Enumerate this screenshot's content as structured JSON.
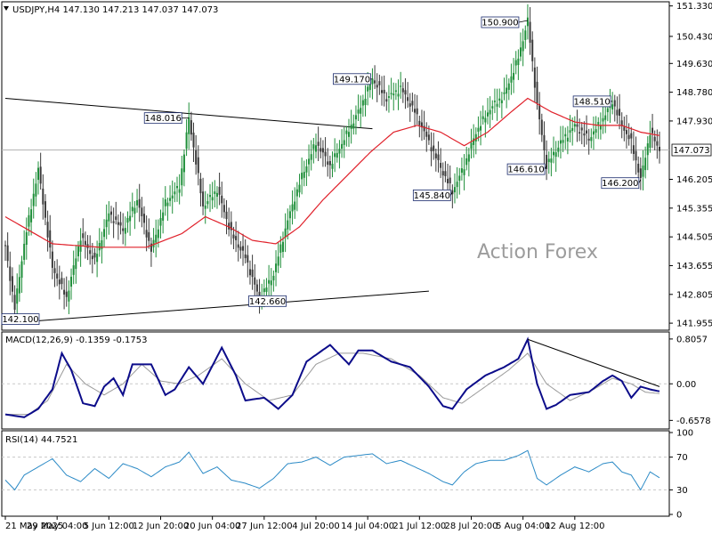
{
  "chart_data": [
    {
      "type": "candlestick",
      "panel": "price",
      "symbol": "USDJPY,H4",
      "ohlc_header": "USDJPY,H4  147.130 147.213 147.037 147.073",
      "watermark": "Action Forex",
      "ylim": [
        141.8,
        151.4
      ],
      "y_ticks": [
        "151.330",
        "150.430",
        "149.630",
        "148.780",
        "147.930",
        "147.073",
        "146.205",
        "145.355",
        "144.505",
        "143.655",
        "142.805",
        "141.955"
      ],
      "current_price": "147.073",
      "price_anchors": [
        [
          0,
          144.2
        ],
        [
          4,
          142.4
        ],
        [
          8,
          144.3
        ],
        [
          14,
          146.5
        ],
        [
          20,
          143.6
        ],
        [
          26,
          142.7
        ],
        [
          32,
          144.5
        ],
        [
          38,
          143.8
        ],
        [
          44,
          145.2
        ],
        [
          50,
          144.7
        ],
        [
          56,
          145.6
        ],
        [
          62,
          144.1
        ],
        [
          68,
          145.5
        ],
        [
          74,
          146.0
        ],
        [
          78,
          148.016
        ],
        [
          84,
          145.4
        ],
        [
          90,
          145.9
        ],
        [
          96,
          144.6
        ],
        [
          102,
          143.9
        ],
        [
          108,
          142.66
        ],
        [
          114,
          143.4
        ],
        [
          120,
          145.0
        ],
        [
          126,
          146.3
        ],
        [
          132,
          147.3
        ],
        [
          138,
          146.6
        ],
        [
          144,
          147.4
        ],
        [
          150,
          148.2
        ],
        [
          156,
          149.17
        ],
        [
          162,
          148.6
        ],
        [
          168,
          148.9
        ],
        [
          174,
          148.2
        ],
        [
          180,
          147.3
        ],
        [
          186,
          146.4
        ],
        [
          190,
          145.84
        ],
        [
          195,
          146.6
        ],
        [
          200,
          147.6
        ],
        [
          206,
          148.3
        ],
        [
          212,
          148.7
        ],
        [
          218,
          149.8
        ],
        [
          222,
          150.9
        ],
        [
          226,
          148.4
        ],
        [
          230,
          146.61
        ],
        [
          236,
          147.3
        ],
        [
          242,
          147.8
        ],
        [
          248,
          147.4
        ],
        [
          254,
          148.0
        ],
        [
          258,
          148.51
        ],
        [
          262,
          147.8
        ],
        [
          266,
          147.3
        ],
        [
          270,
          146.2
        ],
        [
          274,
          147.6
        ],
        [
          278,
          147.073
        ]
      ],
      "ma_anchors": [
        [
          0,
          145.1
        ],
        [
          20,
          144.3
        ],
        [
          40,
          144.2
        ],
        [
          60,
          144.2
        ],
        [
          75,
          144.6
        ],
        [
          85,
          145.1
        ],
        [
          95,
          144.8
        ],
        [
          105,
          144.4
        ],
        [
          115,
          144.3
        ],
        [
          125,
          144.8
        ],
        [
          135,
          145.6
        ],
        [
          145,
          146.3
        ],
        [
          155,
          147.0
        ],
        [
          165,
          147.6
        ],
        [
          175,
          147.8
        ],
        [
          185,
          147.6
        ],
        [
          195,
          147.2
        ],
        [
          205,
          147.6
        ],
        [
          215,
          148.2
        ],
        [
          222,
          148.6
        ],
        [
          232,
          148.2
        ],
        [
          242,
          147.9
        ],
        [
          252,
          147.8
        ],
        [
          262,
          147.8
        ],
        [
          270,
          147.6
        ],
        [
          278,
          147.5
        ]
      ],
      "annotations": [
        {
          "label": "150.900",
          "x": 222,
          "y": 150.9
        },
        {
          "label": "149.170",
          "x": 156,
          "y": 149.17
        },
        {
          "label": "148.510",
          "x": 258,
          "y": 148.51
        },
        {
          "label": "148.016",
          "x": 78,
          "y": 148.016
        },
        {
          "label": "146.610",
          "x": 230,
          "y": 146.61
        },
        {
          "label": "146.200",
          "x": 270,
          "y": 146.2
        },
        {
          "label": "145.840",
          "x": 190,
          "y": 145.84
        },
        {
          "label": "142.660",
          "x": 108,
          "y": 142.66
        },
        {
          "label": "142.100",
          "x": 4,
          "y": 142.1
        }
      ],
      "trendlines": [
        {
          "name": "upper",
          "from": [
            0,
            148.6
          ],
          "to": [
            156,
            147.7
          ]
        },
        {
          "name": "lower",
          "from": [
            0,
            141.95
          ],
          "to": [
            180,
            142.9
          ]
        }
      ]
    },
    {
      "type": "line",
      "panel": "macd",
      "title": "MACD(12,26,9) -0.1359 -0.1753",
      "ylim": [
        -0.78,
        0.9
      ],
      "y_ticks": [
        "0.8057",
        "0.00",
        "-0.6578"
      ],
      "macd_anchors": [
        [
          0,
          -0.55
        ],
        [
          8,
          -0.6
        ],
        [
          14,
          -0.45
        ],
        [
          20,
          -0.1
        ],
        [
          24,
          0.55
        ],
        [
          28,
          0.25
        ],
        [
          33,
          -0.35
        ],
        [
          38,
          -0.4
        ],
        [
          42,
          -0.05
        ],
        [
          46,
          0.1
        ],
        [
          50,
          -0.2
        ],
        [
          54,
          0.35
        ],
        [
          62,
          0.35
        ],
        [
          68,
          -0.2
        ],
        [
          72,
          -0.1
        ],
        [
          78,
          0.3
        ],
        [
          84,
          0.0
        ],
        [
          92,
          0.65
        ],
        [
          98,
          0.15
        ],
        [
          102,
          -0.3
        ],
        [
          110,
          -0.25
        ],
        [
          116,
          -0.45
        ],
        [
          122,
          -0.2
        ],
        [
          128,
          0.4
        ],
        [
          138,
          0.7
        ],
        [
          146,
          0.35
        ],
        [
          150,
          0.6
        ],
        [
          156,
          0.6
        ],
        [
          164,
          0.4
        ],
        [
          172,
          0.3
        ],
        [
          180,
          -0.05
        ],
        [
          186,
          -0.4
        ],
        [
          190,
          -0.45
        ],
        [
          196,
          -0.1
        ],
        [
          204,
          0.15
        ],
        [
          212,
          0.3
        ],
        [
          218,
          0.45
        ],
        [
          222,
          0.8
        ],
        [
          226,
          0.0
        ],
        [
          230,
          -0.45
        ],
        [
          234,
          -0.38
        ],
        [
          240,
          -0.2
        ],
        [
          248,
          -0.15
        ],
        [
          254,
          0.05
        ],
        [
          258,
          0.15
        ],
        [
          262,
          0.05
        ],
        [
          266,
          -0.25
        ],
        [
          270,
          -0.05
        ],
        [
          274,
          -0.1
        ],
        [
          278,
          -0.1359
        ]
      ],
      "signal_anchors": [
        [
          0,
          -0.55
        ],
        [
          10,
          -0.55
        ],
        [
          18,
          -0.3
        ],
        [
          26,
          0.35
        ],
        [
          34,
          0.0
        ],
        [
          42,
          -0.2
        ],
        [
          50,
          0.0
        ],
        [
          58,
          0.35
        ],
        [
          66,
          0.05
        ],
        [
          74,
          0.0
        ],
        [
          82,
          0.15
        ],
        [
          92,
          0.45
        ],
        [
          102,
          0.0
        ],
        [
          112,
          -0.3
        ],
        [
          122,
          -0.2
        ],
        [
          132,
          0.35
        ],
        [
          142,
          0.55
        ],
        [
          152,
          0.55
        ],
        [
          164,
          0.45
        ],
        [
          176,
          0.15
        ],
        [
          186,
          -0.25
        ],
        [
          194,
          -0.35
        ],
        [
          204,
          -0.05
        ],
        [
          214,
          0.25
        ],
        [
          222,
          0.55
        ],
        [
          230,
          0.0
        ],
        [
          240,
          -0.3
        ],
        [
          250,
          -0.1
        ],
        [
          258,
          0.1
        ],
        [
          266,
          0.0
        ],
        [
          272,
          -0.15
        ],
        [
          278,
          -0.1753
        ]
      ],
      "trendline": {
        "from": [
          222,
          0.8
        ],
        "to": [
          278,
          -0.05
        ]
      }
    },
    {
      "type": "line",
      "panel": "rsi",
      "title": "RSI(14) 44.7521",
      "ylim": [
        0,
        100
      ],
      "y_ticks": [
        "100",
        "70",
        "30",
        "0"
      ],
      "levels": [
        70,
        30
      ],
      "rsi_anchors": [
        [
          0,
          42
        ],
        [
          4,
          30
        ],
        [
          8,
          48
        ],
        [
          14,
          58
        ],
        [
          20,
          68
        ],
        [
          26,
          48
        ],
        [
          32,
          40
        ],
        [
          38,
          56
        ],
        [
          44,
          44
        ],
        [
          50,
          62
        ],
        [
          56,
          56
        ],
        [
          62,
          46
        ],
        [
          68,
          58
        ],
        [
          74,
          64
        ],
        [
          78,
          76
        ],
        [
          84,
          50
        ],
        [
          90,
          58
        ],
        [
          96,
          42
        ],
        [
          102,
          38
        ],
        [
          108,
          32
        ],
        [
          114,
          44
        ],
        [
          120,
          62
        ],
        [
          126,
          64
        ],
        [
          132,
          70
        ],
        [
          138,
          60
        ],
        [
          144,
          70
        ],
        [
          150,
          72
        ],
        [
          156,
          74
        ],
        [
          162,
          62
        ],
        [
          168,
          66
        ],
        [
          174,
          58
        ],
        [
          180,
          50
        ],
        [
          186,
          40
        ],
        [
          190,
          36
        ],
        [
          195,
          52
        ],
        [
          200,
          62
        ],
        [
          206,
          66
        ],
        [
          212,
          66
        ],
        [
          218,
          72
        ],
        [
          222,
          78
        ],
        [
          226,
          44
        ],
        [
          230,
          36
        ],
        [
          236,
          48
        ],
        [
          242,
          58
        ],
        [
          248,
          52
        ],
        [
          254,
          62
        ],
        [
          258,
          64
        ],
        [
          262,
          52
        ],
        [
          266,
          48
        ],
        [
          270,
          30
        ],
        [
          274,
          52
        ],
        [
          278,
          44.75
        ]
      ]
    }
  ],
  "x_axis": {
    "labels": [
      "21 May 2025",
      "29 May 04:00",
      "5 Jun 12:00",
      "12 Jun 20:00",
      "20 Jun 04:00",
      "27 Jun 12:00",
      "4 Jul 20:00",
      "14 Jul 04:00",
      "21 Jul 12:00",
      "28 Jul 20:00",
      "5 Aug 04:00",
      "12 Aug 12:00"
    ],
    "label_bars": [
      0,
      22,
      44,
      66,
      88,
      110,
      132,
      154,
      176,
      198,
      220,
      242
    ]
  },
  "colors": {
    "bull": "#1f8f3a",
    "bear": "#3a3a3a",
    "ma": "#e0202a",
    "macd": "#0c0c8a",
    "signal": "#9a9a9a",
    "rsi": "#2b8ac6",
    "trendline": "#000000",
    "grid": "#c8c8c8",
    "watermark": "#9c9c9c"
  }
}
